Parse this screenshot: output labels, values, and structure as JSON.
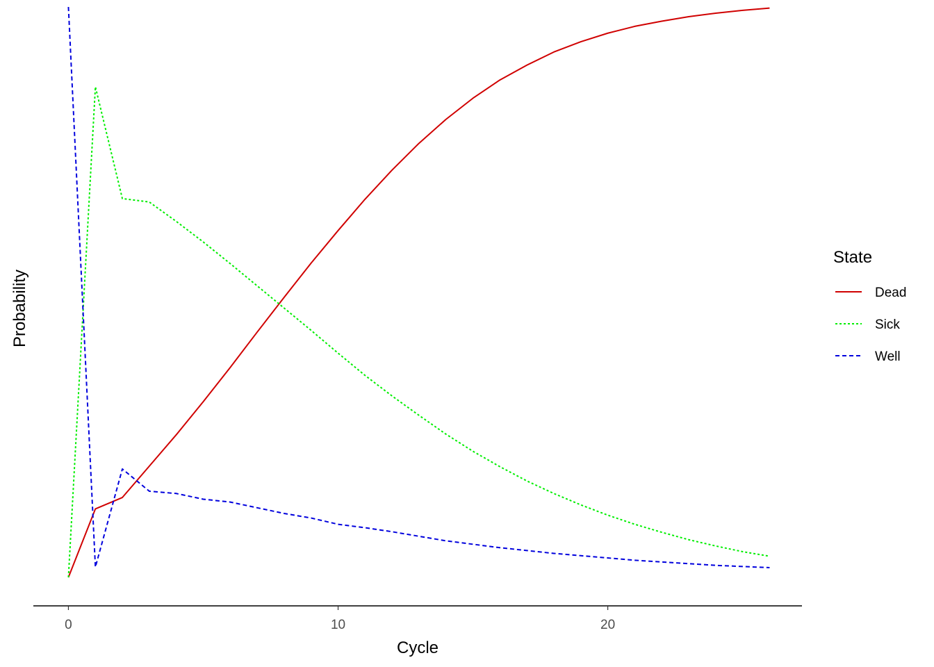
{
  "chart_data": {
    "type": "line",
    "xlabel": "Cycle",
    "ylabel": "Probability",
    "xlim": [
      -1.3,
      27.2
    ],
    "ylim": [
      -0.05,
      1.0
    ],
    "x_ticks": [
      0,
      10,
      20
    ],
    "x_tick_labels": [
      "0",
      "10",
      "20"
    ],
    "y_axis_visible": false,
    "grid": false,
    "legend": {
      "title": "State",
      "position": "right"
    },
    "x": [
      0,
      1,
      2,
      3,
      4,
      5,
      6,
      7,
      8,
      9,
      10,
      11,
      12,
      13,
      14,
      15,
      16,
      17,
      18,
      19,
      20,
      21,
      22,
      23,
      24,
      25,
      26
    ],
    "series": [
      {
        "name": "Dead",
        "color": "#d00000",
        "dash": "solid",
        "values": [
          0.0,
          0.12,
          0.14,
          0.195,
          0.25,
          0.308,
          0.368,
          0.43,
          0.491,
          0.551,
          0.608,
          0.663,
          0.714,
          0.761,
          0.803,
          0.84,
          0.872,
          0.898,
          0.921,
          0.939,
          0.954,
          0.966,
          0.975,
          0.983,
          0.989,
          0.994,
          0.998
        ]
      },
      {
        "name": "Sick",
        "color": "#00ee00",
        "dash": "dotted",
        "values": [
          0.0,
          0.86,
          0.664,
          0.658,
          0.624,
          0.588,
          0.55,
          0.511,
          0.472,
          0.433,
          0.393,
          0.354,
          0.318,
          0.284,
          0.251,
          0.221,
          0.194,
          0.169,
          0.147,
          0.127,
          0.109,
          0.093,
          0.079,
          0.066,
          0.055,
          0.045,
          0.037
        ]
      },
      {
        "name": "Well",
        "color": "#0000dd",
        "dash": "dashed",
        "values": [
          1.0,
          0.018,
          0.19,
          0.151,
          0.147,
          0.137,
          0.132,
          0.122,
          0.112,
          0.104,
          0.093,
          0.087,
          0.08,
          0.072,
          0.064,
          0.058,
          0.052,
          0.047,
          0.042,
          0.038,
          0.034,
          0.03,
          0.027,
          0.024,
          0.021,
          0.019,
          0.017
        ]
      }
    ]
  }
}
